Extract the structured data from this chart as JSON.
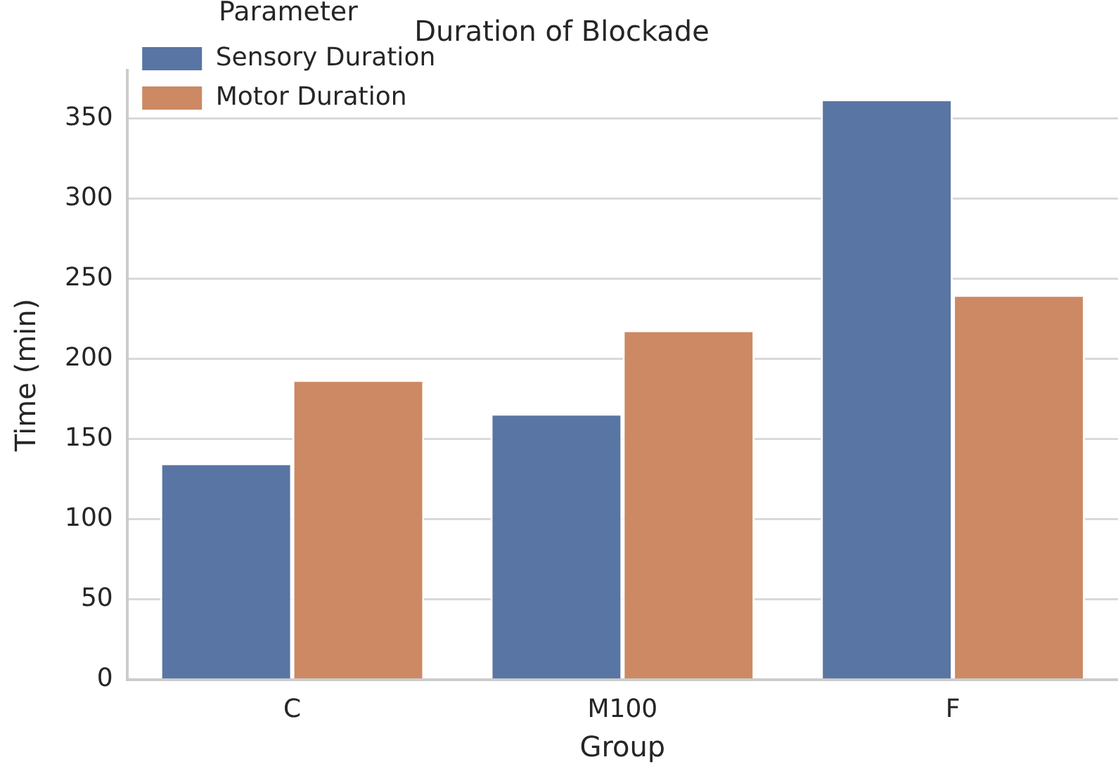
{
  "chart_data": {
    "type": "bar",
    "title": "Duration of Blockade",
    "xlabel": "Group",
    "ylabel": "Time (min)",
    "legend_title": "Parameter",
    "categories": [
      "C",
      "M100",
      "F"
    ],
    "series": [
      {
        "name": "Sensory Duration",
        "color": "#5975a4",
        "values": [
          135,
          166,
          362
        ]
      },
      {
        "name": "Motor Duration",
        "color": "#cc8963",
        "values": [
          187,
          218,
          240
        ]
      }
    ],
    "ylim": [
      0,
      380
    ],
    "yticks": [
      0,
      50,
      100,
      150,
      200,
      250,
      300,
      350
    ],
    "grid": "y",
    "legend": "top left"
  }
}
